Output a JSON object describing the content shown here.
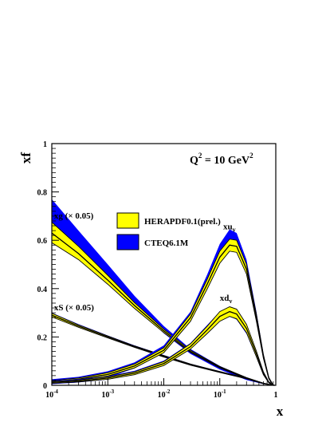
{
  "chart_data": {
    "type": "line",
    "title": "",
    "annotation": {
      "main": "Q",
      "sup1": "2",
      "mid": " = 10 GeV",
      "sup2": "2"
    },
    "xlabel": "x",
    "ylabel": "xf",
    "x_scale": "log",
    "xlim": [
      0.0001,
      1
    ],
    "ylim": [
      0,
      1
    ],
    "grid": false,
    "legend_position": "center",
    "x_ticks": [
      {
        "value": 0.0001,
        "base": "10",
        "exp": "-4"
      },
      {
        "value": 0.001,
        "base": "10",
        "exp": "-3"
      },
      {
        "value": 0.01,
        "base": "10",
        "exp": "-2"
      },
      {
        "value": 0.1,
        "base": "10",
        "exp": "-1"
      },
      {
        "value": 1,
        "base": "1",
        "exp": ""
      }
    ],
    "y_ticks": [
      {
        "value": 0,
        "label": "0"
      },
      {
        "value": 0.2,
        "label": "0.2"
      },
      {
        "value": 0.4,
        "label": "0.4"
      },
      {
        "value": 0.6,
        "label": "0.6"
      },
      {
        "value": 0.8,
        "label": "0.8"
      },
      {
        "value": 1.0,
        "label": "1"
      }
    ],
    "legend": [
      {
        "label": "HERAPDF0.1(prel.)",
        "color": "#ffff00"
      },
      {
        "label": "CTEQ6.1M",
        "color": "#0000ff"
      }
    ],
    "curve_labels": [
      {
        "id": "xg",
        "text": "xg (× 0.05)",
        "sub": "",
        "x": 0.00011,
        "y": 0.69
      },
      {
        "id": "xS",
        "text": "xS (× 0.05)",
        "sub": "",
        "x": 0.00011,
        "y": 0.31
      },
      {
        "id": "xuv",
        "text": "xu",
        "sub": "v",
        "x": 0.115,
        "y": 0.645
      },
      {
        "id": "xdv",
        "text": "xd",
        "sub": "v",
        "x": 0.1,
        "y": 0.35
      }
    ],
    "series": [
      {
        "name": "xg (× 0.05)",
        "x": [
          0.0001,
          0.0003,
          0.001,
          0.003,
          0.01,
          0.03,
          0.1,
          0.3,
          0.6,
          0.85,
          0.95
        ],
        "herapdf": {
          "central": [
            0.63,
            0.545,
            0.435,
            0.33,
            0.225,
            0.14,
            0.075,
            0.03,
            0.008,
            0.001,
            0.0
          ],
          "lower": [
            0.59,
            0.52,
            0.418,
            0.318,
            0.218,
            0.136,
            0.072,
            0.028,
            0.007,
            0.001,
            0.0
          ],
          "upper": [
            0.675,
            0.575,
            0.455,
            0.342,
            0.232,
            0.145,
            0.078,
            0.032,
            0.009,
            0.002,
            0.0
          ]
        },
        "cteq": {
          "lower": [
            0.6,
            0.53,
            0.43,
            0.33,
            0.215,
            0.13,
            0.065,
            0.022,
            0.005,
            0.001,
            0.0
          ],
          "upper": [
            0.77,
            0.64,
            0.5,
            0.37,
            0.245,
            0.15,
            0.08,
            0.03,
            0.009,
            0.002,
            0.0
          ]
        }
      },
      {
        "name": "xS (× 0.05)",
        "x": [
          0.0001,
          0.0003,
          0.001,
          0.003,
          0.01,
          0.03,
          0.1,
          0.3,
          0.6,
          0.85,
          0.95
        ],
        "herapdf": {
          "central": [
            0.29,
            0.245,
            0.2,
            0.16,
            0.12,
            0.085,
            0.055,
            0.028,
            0.008,
            0.001,
            0.0
          ],
          "lower": [
            0.283,
            0.24,
            0.196,
            0.157,
            0.117,
            0.083,
            0.053,
            0.027,
            0.007,
            0.001,
            0.0
          ],
          "upper": [
            0.298,
            0.25,
            0.204,
            0.163,
            0.123,
            0.088,
            0.057,
            0.03,
            0.009,
            0.001,
            0.0
          ]
        },
        "cteq": {
          "lower": [
            0.285,
            0.242,
            0.198,
            0.158,
            0.118,
            0.084,
            0.054,
            0.027,
            0.007,
            0.001,
            0.0
          ],
          "upper": [
            0.3,
            0.253,
            0.206,
            0.165,
            0.125,
            0.089,
            0.058,
            0.031,
            0.009,
            0.001,
            0.0
          ]
        }
      },
      {
        "name": "xu",
        "x": [
          0.0001,
          0.0003,
          0.001,
          0.003,
          0.01,
          0.03,
          0.06,
          0.1,
          0.15,
          0.2,
          0.3,
          0.45,
          0.6,
          0.75,
          0.9
        ],
        "herapdf": {
          "central": [
            0.015,
            0.025,
            0.045,
            0.08,
            0.145,
            0.28,
            0.42,
            0.53,
            0.58,
            0.575,
            0.48,
            0.28,
            0.12,
            0.03,
            0.0
          ],
          "lower": [
            0.01,
            0.02,
            0.038,
            0.072,
            0.135,
            0.265,
            0.4,
            0.505,
            0.555,
            0.55,
            0.46,
            0.265,
            0.112,
            0.027,
            0.0
          ],
          "upper": [
            0.02,
            0.03,
            0.052,
            0.088,
            0.155,
            0.295,
            0.44,
            0.555,
            0.605,
            0.6,
            0.5,
            0.295,
            0.128,
            0.033,
            0.0
          ]
        },
        "cteq": {
          "lower": [
            0.005,
            0.012,
            0.032,
            0.07,
            0.135,
            0.27,
            0.41,
            0.52,
            0.575,
            0.57,
            0.47,
            0.27,
            0.112,
            0.026,
            0.0
          ],
          "upper": [
            0.025,
            0.035,
            0.058,
            0.095,
            0.165,
            0.305,
            0.46,
            0.585,
            0.645,
            0.63,
            0.52,
            0.305,
            0.132,
            0.034,
            0.0
          ]
        }
      },
      {
        "name": "xd",
        "x": [
          0.0001,
          0.0003,
          0.001,
          0.003,
          0.01,
          0.03,
          0.06,
          0.1,
          0.15,
          0.2,
          0.3,
          0.45,
          0.6,
          0.75,
          0.9
        ],
        "herapdf": {
          "central": [
            0.012,
            0.018,
            0.03,
            0.05,
            0.09,
            0.16,
            0.23,
            0.285,
            0.305,
            0.295,
            0.235,
            0.13,
            0.05,
            0.012,
            0.0
          ],
          "lower": [
            0.008,
            0.014,
            0.025,
            0.044,
            0.082,
            0.15,
            0.215,
            0.265,
            0.285,
            0.275,
            0.218,
            0.118,
            0.044,
            0.01,
            0.0
          ],
          "upper": [
            0.016,
            0.022,
            0.035,
            0.056,
            0.098,
            0.172,
            0.245,
            0.305,
            0.325,
            0.315,
            0.252,
            0.142,
            0.056,
            0.014,
            0.0
          ]
        },
        "cteq": {
          "lower": [
            0.006,
            0.012,
            0.024,
            0.045,
            0.083,
            0.152,
            0.218,
            0.27,
            0.285,
            0.272,
            0.213,
            0.115,
            0.043,
            0.009,
            0.0
          ],
          "upper": [
            0.02,
            0.025,
            0.038,
            0.06,
            0.102,
            0.175,
            0.25,
            0.305,
            0.32,
            0.308,
            0.245,
            0.138,
            0.055,
            0.013,
            0.0
          ]
        }
      }
    ]
  }
}
